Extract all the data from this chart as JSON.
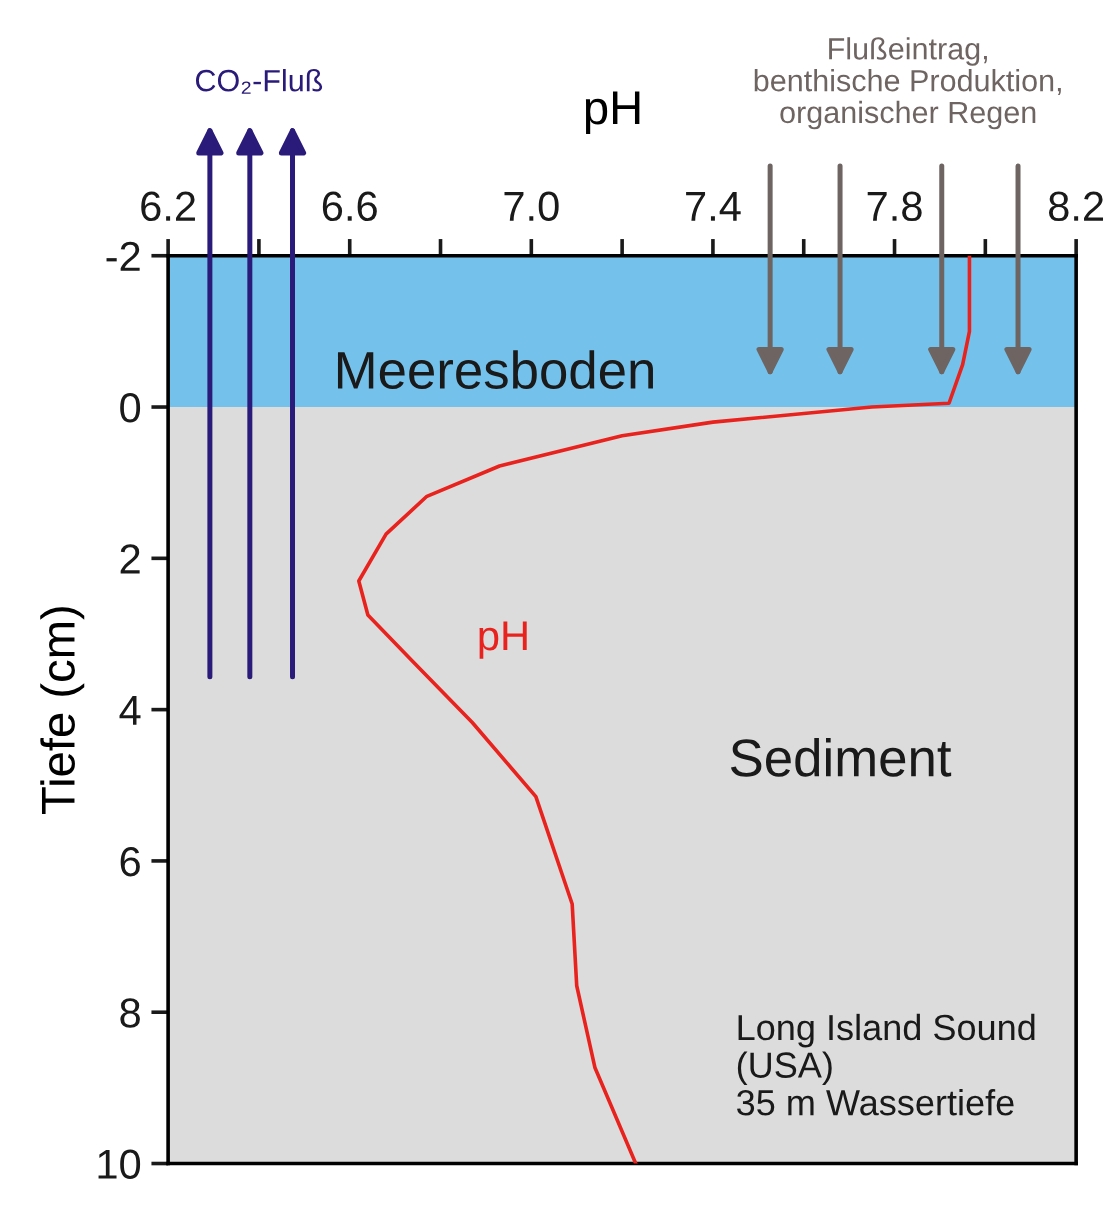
{
  "chart_data": {
    "type": "line",
    "xlabel": "pH",
    "ylabel": "Tiefe (cm)",
    "xlim": [
      6.2,
      8.2
    ],
    "ylim": [
      10,
      -2
    ],
    "xticks": [
      6.2,
      {
        "value": 6.4,
        "label": null
      },
      6.6,
      {
        "value": 6.8,
        "label": null
      },
      {
        "value": 7.0,
        "label": "7.0"
      },
      {
        "value": 7.2,
        "label": null
      },
      7.4,
      {
        "value": 7.6,
        "label": null
      },
      7.8,
      {
        "value": 8.0,
        "label": null
      },
      8.2
    ],
    "yticks": [
      -2,
      0,
      2,
      4,
      6,
      8,
      10
    ],
    "grid": false,
    "legend": false,
    "marker": "none",
    "line_style": "solid",
    "series": [
      {
        "name": "pH",
        "color": "#e8231e",
        "x": [
          7.965,
          7.965,
          7.95,
          7.92,
          7.75,
          7.4,
          7.2,
          6.93,
          6.77,
          6.68,
          6.62,
          6.64,
          6.74,
          6.87,
          7.01,
          7.09,
          7.1,
          7.14,
          7.23
        ],
        "values": [
          -2,
          -1,
          -0.56,
          -0.05,
          0.0,
          0.2,
          0.38,
          0.78,
          1.18,
          1.68,
          2.3,
          2.75,
          3.37,
          4.17,
          5.15,
          6.57,
          7.65,
          8.73,
          10
        ]
      }
    ],
    "bands": [
      {
        "axis": "y",
        "from": -2,
        "to": 0,
        "label": "Meeresboden",
        "color": "#74c2ec"
      },
      {
        "axis": "y",
        "from": 0,
        "to": 10,
        "label": "Sediment",
        "color": "#dcdcdc"
      }
    ],
    "annotations": [
      "CO₂-Fluß",
      "Flußeintrag,\nbenthische Produktion,\norganischer Regen",
      "Long Island Sound\n(USA)\n35 m Wassertiefe"
    ]
  }
}
